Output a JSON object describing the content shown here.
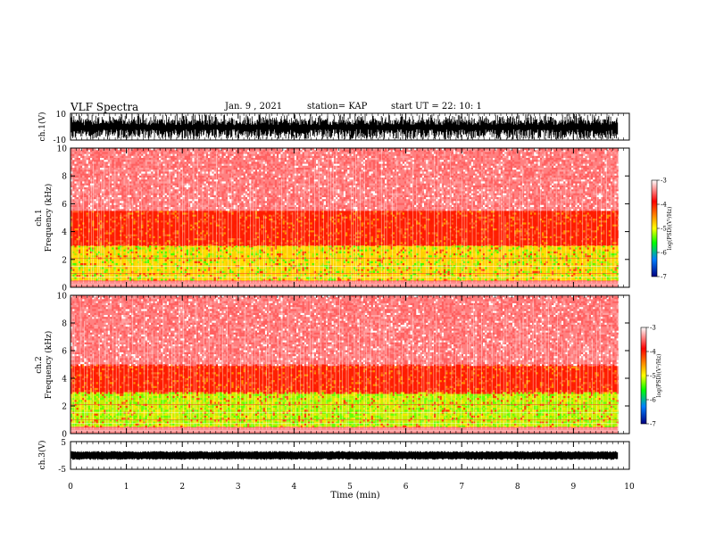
{
  "header": {
    "title": "VLF Spectra",
    "date": "Jan. 9 , 2021",
    "station": "station= KAP",
    "start": "start UT = 22: 10: 1"
  },
  "chart_data": [
    {
      "id": "ch1-waveform",
      "type": "line",
      "ylabel": "ch.1(V)",
      "ylim": [
        -10,
        10
      ],
      "yticks": [
        "10",
        "-10"
      ],
      "xlim": [
        0,
        10
      ],
      "data_end": 9.8,
      "color": "#000000"
    },
    {
      "id": "ch1-spectrogram",
      "type": "heatmap",
      "ylabel": "ch.1",
      "ylabel2": "Frequency (kHz)",
      "ylim": [
        0,
        10
      ],
      "yticks": [
        "0",
        "2",
        "4",
        "6",
        "8",
        "10"
      ],
      "xlim": [
        0,
        10
      ],
      "data_end": 9.8,
      "color_scale": {
        "label": "log(PSD)(V²/Hz)",
        "range": [
          -7,
          -3
        ],
        "ticks": [
          "-3",
          "-4",
          "-5",
          "-6",
          "-7"
        ],
        "colors": [
          "#ffffff",
          "#ff0000",
          "#ffff00",
          "#00ff00",
          "#0080ff",
          "#000080"
        ]
      },
      "bands": [
        {
          "name": "low",
          "range_khz": [
            0.5,
            3.0
          ],
          "level": "yellow-green"
        },
        {
          "name": "mid",
          "range_khz": [
            3.0,
            5.5
          ],
          "level": "red"
        },
        {
          "name": "high",
          "range_khz": [
            5.5,
            10
          ],
          "level": "light-red"
        }
      ]
    },
    {
      "id": "ch2-spectrogram",
      "type": "heatmap",
      "ylabel": "ch.2",
      "ylabel2": "Frequency (kHz)",
      "ylim": [
        0,
        10
      ],
      "yticks": [
        "0",
        "2",
        "4",
        "6",
        "8",
        "10"
      ],
      "xlim": [
        0,
        10
      ],
      "data_end": 9.8,
      "color_scale": {
        "label": "log(PSD)(V²/Hz)",
        "range": [
          -7,
          -3
        ],
        "ticks": [
          "-3",
          "-4",
          "-5",
          "-6",
          "-7"
        ],
        "colors": [
          "#ffffff",
          "#ff0000",
          "#ffff00",
          "#00ff00",
          "#0080ff",
          "#000080"
        ]
      },
      "bands": [
        {
          "name": "low",
          "range_khz": [
            0.5,
            3.0
          ],
          "level": "green"
        },
        {
          "name": "mid",
          "range_khz": [
            3.0,
            5.0
          ],
          "level": "red"
        },
        {
          "name": "high",
          "range_khz": [
            5.0,
            10
          ],
          "level": "light-red"
        }
      ]
    },
    {
      "id": "ch3-waveform",
      "type": "line",
      "ylabel": "ch.3(V)",
      "ylim": [
        -5,
        5
      ],
      "yticks": [
        "5",
        "-5"
      ],
      "xlim": [
        0,
        10
      ],
      "data_end": 9.8,
      "baseline": 0,
      "color": "#000000"
    }
  ],
  "xaxis": {
    "label": "Time (min)",
    "ticks": [
      "0",
      "1",
      "2",
      "3",
      "4",
      "5",
      "6",
      "7",
      "8",
      "9",
      "10"
    ]
  }
}
